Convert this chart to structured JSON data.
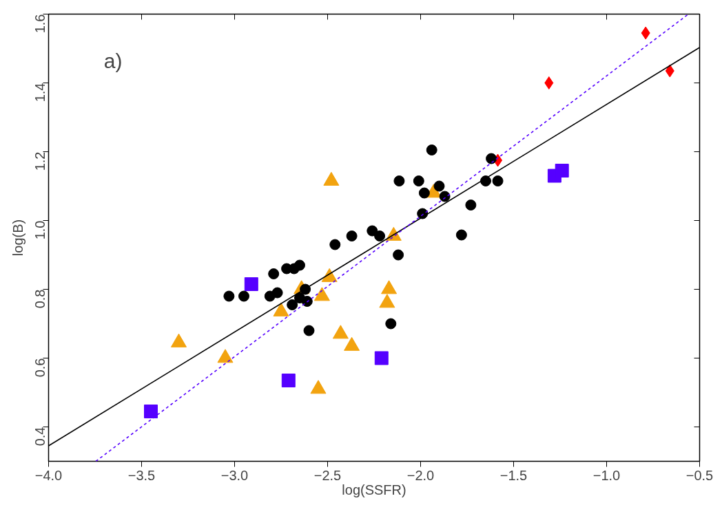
{
  "chart_data": {
    "type": "scatter",
    "xlabel": "log(SSFR)",
    "ylabel": "log(B)",
    "annotations": [
      "a)"
    ],
    "xlim": [
      -4.0,
      -0.5
    ],
    "ylim": [
      0.3,
      1.6
    ],
    "xticks": [
      {
        "value": -4.0,
        "label": "−4.0"
      },
      {
        "value": -3.5,
        "label": "−3.5"
      },
      {
        "value": -3.0,
        "label": "−3.0"
      },
      {
        "value": -2.5,
        "label": "−2.5"
      },
      {
        "value": -2.0,
        "label": "−2.0"
      },
      {
        "value": -1.5,
        "label": "−1.5"
      },
      {
        "value": -1.0,
        "label": "−1.0"
      },
      {
        "value": -0.5,
        "label": "−0.5"
      }
    ],
    "yticks": [
      0.4,
      0.6,
      0.8,
      {
        "value": 1.0,
        "label": "1.0"
      },
      1.2,
      1.4,
      1.6
    ],
    "grid": false,
    "series": [
      {
        "marker": "triangle",
        "color": "#f2a30f",
        "x": [
          -3.3,
          -3.05,
          -2.75,
          -2.64,
          -2.53,
          -2.49,
          -2.43,
          -2.37,
          -2.55,
          -2.48,
          -2.145,
          -1.93,
          -2.17,
          -2.18
        ],
        "values": [
          0.645,
          0.6,
          0.735,
          0.8,
          0.78,
          0.835,
          0.67,
          0.635,
          0.51,
          1.115,
          0.955,
          1.08,
          0.8,
          0.76
        ]
      },
      {
        "marker": "square",
        "color": "#5500ff",
        "x": [
          -1.28,
          -1.24,
          -2.91,
          -2.71,
          -3.45,
          -2.21
        ],
        "values": [
          1.13,
          1.145,
          0.815,
          0.535,
          0.445,
          0.6
        ]
      },
      {
        "marker": "diamond",
        "color": "#ff0000",
        "x": [
          -1.585,
          -1.31,
          -0.79,
          -0.66
        ],
        "values": [
          1.175,
          1.4,
          1.545,
          1.435
        ]
      },
      {
        "marker": "circle",
        "color": "#000000",
        "x": [
          -3.03,
          -2.95,
          -2.81,
          -2.77,
          -2.79,
          -2.72,
          -2.68,
          -2.65,
          -2.62,
          -2.65,
          -2.69,
          -2.61,
          -2.6,
          -2.46,
          -2.37,
          -2.26,
          -2.22,
          -2.12,
          -1.99,
          -2.115,
          -2.01,
          -1.94,
          -1.98,
          -1.9,
          -1.87,
          -1.73,
          -1.78,
          -1.65,
          -1.585,
          -1.62,
          -2.16
        ],
        "values": [
          0.78,
          0.78,
          0.78,
          0.79,
          0.845,
          0.86,
          0.86,
          0.87,
          0.8,
          0.775,
          0.755,
          0.765,
          0.68,
          0.93,
          0.955,
          0.97,
          0.955,
          0.9,
          1.02,
          1.115,
          1.115,
          1.205,
          1.08,
          1.1,
          1.07,
          1.045,
          0.958,
          1.115,
          1.115,
          1.18,
          0.7
        ]
      },
      {
        "type": "line",
        "line_style": "solid",
        "color": "#000000",
        "x": [
          -4.0,
          -0.5
        ],
        "values": [
          0.345,
          1.503
        ]
      },
      {
        "type": "line",
        "line_style": "dashed",
        "color": "#5500ff",
        "x": [
          -3.746,
          -0.56
        ],
        "values": [
          0.3,
          1.6
        ]
      }
    ]
  }
}
